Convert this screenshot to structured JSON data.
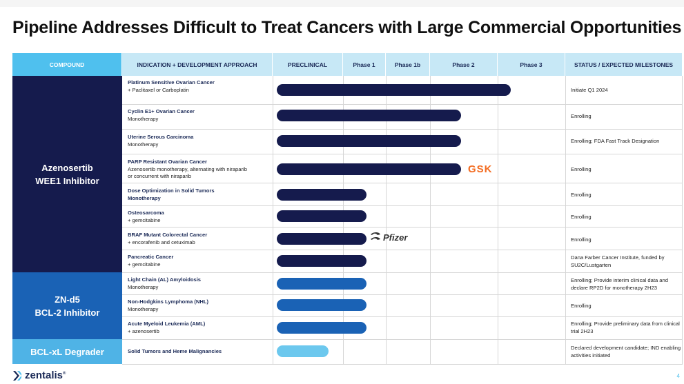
{
  "title": "Pipeline Addresses Difficult to Treat Cancers with Large Commercial Opportunities",
  "headers": {
    "compound": "COMPOUND",
    "indication": "INDICATION + DEVELOPMENT APPROACH",
    "preclinical": "PRECLINICAL",
    "phase1": "Phase 1",
    "phase1b": "Phase 1b",
    "phase2": "Phase 2",
    "phase3": "Phase 3",
    "status": "STATUS / EXPECTED MILESTONES"
  },
  "compounds": [
    {
      "line1": "Azenosertib",
      "line2": "WEE1 Inhibitor"
    },
    {
      "line1": "ZN-d5",
      "line2": "BCL-2 Inhibitor"
    },
    {
      "line1": "BCL-xL Degrader",
      "line2": ""
    }
  ],
  "rows": [
    {
      "name": "Platinum Sensitive Ovarian Cancer",
      "sub": "+ Paclitaxel or Carboplatin",
      "sub2": "",
      "status": "Initiate Q1 2024",
      "stage": "Phase 3"
    },
    {
      "name": "Cyclin E1+ Ovarian Cancer",
      "sub": "Monotherapy",
      "sub2": "",
      "status": "Enrolling",
      "stage": "Phase 2"
    },
    {
      "name": "Uterine Serous Carcinoma",
      "sub": "Monotherapy",
      "sub2": "",
      "status": "Enrolling; FDA Fast Track Designation",
      "stage": "Phase 2"
    },
    {
      "name": "PARP Resistant Ovarian Cancer",
      "sub": "Azenosertib monotherapy, alternating with niraparib",
      "sub2": "or concurrent with niraparib",
      "status": "Enrolling",
      "stage": "Phase 2"
    },
    {
      "name": "Dose Optimization in Solid Tumors",
      "sub": "Monotherapy",
      "sub2": "",
      "status": "Enrolling",
      "stage": "Phase 1"
    },
    {
      "name": "Osteosarcoma",
      "sub": "+ gemcitabine",
      "sub2": "",
      "status": "Enrolling",
      "stage": "Phase 1"
    },
    {
      "name": "BRAF Mutant Colorectal Cancer",
      "sub": "+ encorafenib and cetuximab",
      "sub2": "",
      "status": "Enrolling",
      "stage": "Phase 1"
    },
    {
      "name": "Pancreatic Cancer",
      "sub": "+ gemcitabine",
      "sub2": "",
      "status": "Dana Farber Cancer Institute, funded by SU2C/Lustgarten",
      "stage": "Phase 1"
    },
    {
      "name": "Light Chain (AL) Amyloidosis",
      "sub": "Monotherapy",
      "sub2": "",
      "status": "Enrolling; Provide interim clinical data and declare RP2D for monotherapy 2H23",
      "stage": "Phase 1"
    },
    {
      "name": "Non-Hodgkins Lymphoma (NHL)",
      "sub": "Monotherapy",
      "sub2": "",
      "status": "Enrolling",
      "stage": "Phase 1"
    },
    {
      "name": "Acute Myeloid Leukemia (AML)",
      "sub": "+ azenosertib",
      "sub2": "",
      "status": "Enrolling; Provide preliminary data from clinical trial 2H23",
      "stage": "Phase 1"
    },
    {
      "name": "Solid Tumors and Heme Malignancies",
      "sub": "",
      "sub2": "",
      "status": "Declared development candidate; IND enabling activities initiated",
      "stage": "Preclinical"
    }
  ],
  "partners": {
    "gsk": "GSK",
    "pfizer": "Pfizer"
  },
  "footer": {
    "logo": "zentalis",
    "reg": "®",
    "page": "4"
  },
  "colors": {
    "dark": "#151b4d",
    "mid": "#1a62b5",
    "light": "#6cc8ee",
    "header": "#c7e8f6",
    "compound_header": "#4fc0ee",
    "gsk": "#f36c21"
  }
}
